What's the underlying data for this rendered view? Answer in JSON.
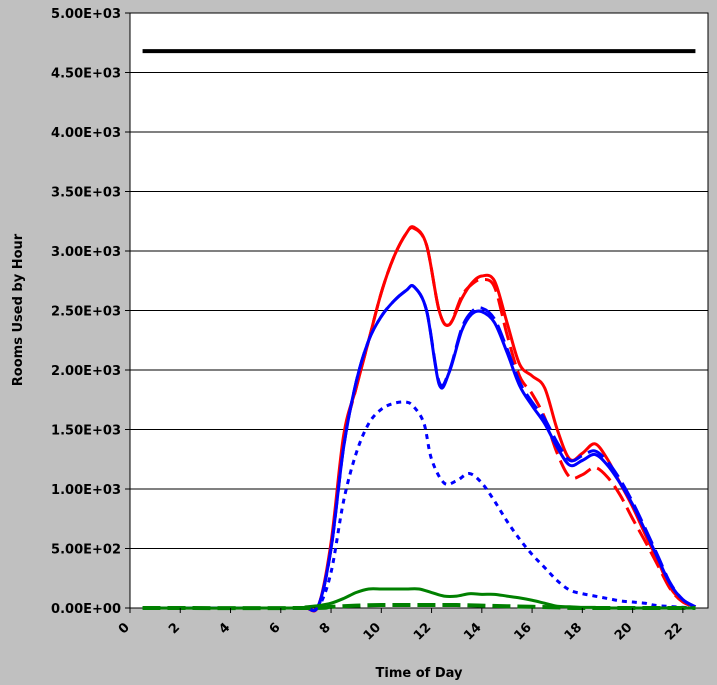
{
  "chart_data": {
    "type": "line",
    "title": "",
    "xlabel": "Time of Day",
    "ylabel": "Rooms Used by Hour",
    "xlim": [
      0,
      23
    ],
    "ylim": [
      0,
      5000
    ],
    "x_ticks": [
      0,
      2,
      4,
      6,
      8,
      10,
      12,
      14,
      16,
      18,
      20,
      22
    ],
    "x_tick_labels": [
      "0",
      "2",
      "4",
      "6",
      "8",
      "10",
      "12",
      "14",
      "16",
      "18",
      "20",
      "22"
    ],
    "y_ticks": [
      0,
      500,
      1000,
      1500,
      2000,
      2500,
      3000,
      3500,
      4000,
      4500,
      5000
    ],
    "y_tick_labels": [
      "0.00E+00",
      "5.00E+02",
      "1.00E+03",
      "1.50E+03",
      "2.00E+03",
      "2.50E+03",
      "3.00E+03",
      "3.50E+03",
      "4.00E+03",
      "4.50E+03",
      "5.00E+03"
    ],
    "grid": "horizontal",
    "legend": "none",
    "series": [
      {
        "color": "#000000",
        "dash": "solid",
        "width": 4,
        "x": [
          0.5,
          22.5
        ],
        "y": [
          4680,
          4680
        ]
      },
      {
        "color": "#ff0000",
        "dash": "solid",
        "width": 3,
        "x": [
          0.5,
          6.5,
          7.0,
          7.5,
          8.0,
          8.5,
          9.0,
          9.5,
          10.0,
          10.5,
          11.0,
          11.3,
          11.8,
          12.3,
          12.7,
          13.2,
          13.6,
          14.0,
          14.5,
          15.0,
          15.5,
          16.0,
          16.5,
          17.0,
          17.5,
          18.0,
          18.5,
          19.0,
          19.5,
          20.0,
          20.5,
          21.0,
          21.5,
          22.0,
          22.5
        ],
        "y": [
          0,
          0,
          0,
          20,
          550,
          1450,
          1850,
          2250,
          2650,
          2950,
          3150,
          3200,
          3050,
          2500,
          2380,
          2600,
          2730,
          2790,
          2750,
          2400,
          2050,
          1950,
          1850,
          1500,
          1250,
          1300,
          1380,
          1250,
          1050,
          850,
          620,
          400,
          170,
          60,
          10
        ]
      },
      {
        "color": "#ff0000",
        "dash": "long-dash",
        "width": 3,
        "x": [
          0.5,
          6.5,
          7.0,
          7.5,
          8.0,
          8.5,
          9.0,
          9.5,
          10.0,
          10.5,
          11.0,
          11.3,
          11.8,
          12.3,
          12.7,
          13.2,
          13.6,
          14.0,
          14.5,
          15.0,
          15.5,
          16.0,
          16.5,
          17.0,
          17.5,
          18.0,
          18.5,
          19.0,
          19.5,
          20.0,
          20.5,
          21.0,
          21.5,
          22.0,
          22.5
        ],
        "y": [
          0,
          0,
          0,
          20,
          500,
          1400,
          1850,
          2250,
          2650,
          2950,
          3150,
          3190,
          3050,
          2500,
          2380,
          2620,
          2720,
          2760,
          2700,
          2300,
          1950,
          1800,
          1600,
          1300,
          1100,
          1120,
          1180,
          1100,
          950,
          750,
          560,
          360,
          160,
          50,
          10
        ]
      },
      {
        "color": "#0000ff",
        "dash": "solid",
        "width": 3,
        "x": [
          0.5,
          6.5,
          7.0,
          7.5,
          8.0,
          8.5,
          9.0,
          9.5,
          10.0,
          10.5,
          11.0,
          11.3,
          11.8,
          12.3,
          12.7,
          13.2,
          13.6,
          14.0,
          14.5,
          15.0,
          15.5,
          16.0,
          16.5,
          17.0,
          17.5,
          18.0,
          18.5,
          19.0,
          19.5,
          20.0,
          20.5,
          21.0,
          21.5,
          22.0,
          22.5
        ],
        "y": [
          0,
          0,
          0,
          20,
          500,
          1350,
          1900,
          2250,
          2450,
          2580,
          2670,
          2700,
          2500,
          1880,
          1980,
          2330,
          2470,
          2490,
          2400,
          2150,
          1870,
          1700,
          1550,
          1350,
          1200,
          1240,
          1290,
          1200,
          1050,
          870,
          650,
          420,
          200,
          70,
          10
        ]
      },
      {
        "color": "#0000ff",
        "dash": "long-dash",
        "width": 3,
        "x": [
          0.5,
          6.5,
          7.0,
          7.5,
          8.0,
          8.5,
          9.0,
          9.5,
          10.0,
          10.5,
          11.0,
          11.3,
          11.8,
          12.3,
          12.7,
          13.2,
          13.6,
          14.0,
          14.5,
          15.0,
          15.5,
          16.0,
          16.5,
          17.0,
          17.5,
          18.0,
          18.5,
          19.0,
          19.5,
          20.0,
          20.5,
          21.0,
          21.5,
          22.0,
          22.5
        ],
        "y": [
          0,
          0,
          0,
          20,
          500,
          1350,
          1900,
          2250,
          2450,
          2580,
          2670,
          2700,
          2500,
          1900,
          1990,
          2350,
          2490,
          2520,
          2430,
          2180,
          1900,
          1730,
          1590,
          1390,
          1240,
          1280,
          1320,
          1230,
          1080,
          890,
          670,
          440,
          210,
          70,
          10
        ]
      },
      {
        "color": "#0000ff",
        "dash": "dotted",
        "width": 3,
        "x": [
          0.5,
          6.5,
          7.0,
          7.5,
          8.0,
          8.5,
          9.0,
          9.5,
          10.0,
          10.5,
          11.0,
          11.3,
          11.7,
          12.0,
          12.5,
          13.0,
          13.5,
          14.0,
          14.5,
          15.0,
          15.5,
          16.0,
          16.5,
          17.0,
          17.5,
          18.0,
          18.5,
          19.0,
          19.5,
          20.0,
          20.5,
          21.0,
          22.5
        ],
        "y": [
          0,
          0,
          0,
          10,
          300,
          900,
          1300,
          1550,
          1670,
          1720,
          1730,
          1690,
          1550,
          1250,
          1050,
          1070,
          1130,
          1050,
          900,
          730,
          580,
          450,
          340,
          230,
          150,
          120,
          100,
          80,
          60,
          50,
          40,
          20,
          0
        ]
      },
      {
        "color": "#008000",
        "dash": "solid",
        "width": 3,
        "x": [
          0.5,
          6.5,
          7.0,
          7.5,
          8.0,
          8.5,
          9.0,
          9.5,
          10.0,
          10.5,
          11.0,
          11.5,
          12.0,
          12.5,
          13.0,
          13.5,
          14.0,
          14.5,
          15.0,
          15.5,
          16.0,
          16.5,
          17.0,
          17.5,
          18.0,
          18.5,
          19.0,
          22.5
        ],
        "y": [
          0,
          0,
          10,
          20,
          40,
          80,
          130,
          160,
          160,
          160,
          160,
          160,
          130,
          100,
          100,
          120,
          115,
          115,
          100,
          85,
          65,
          40,
          15,
          10,
          5,
          5,
          0,
          0
        ]
      },
      {
        "color": "#008000",
        "dash": "long-dash",
        "width": 4,
        "x": [
          0.5,
          7.0,
          8.0,
          9.0,
          10.0,
          11.0,
          12.0,
          13.0,
          14.0,
          15.0,
          16.0,
          17.0,
          18.0,
          22.5
        ],
        "y": [
          0,
          0,
          10,
          20,
          25,
          25,
          25,
          25,
          20,
          15,
          10,
          5,
          0,
          0
        ]
      }
    ]
  }
}
